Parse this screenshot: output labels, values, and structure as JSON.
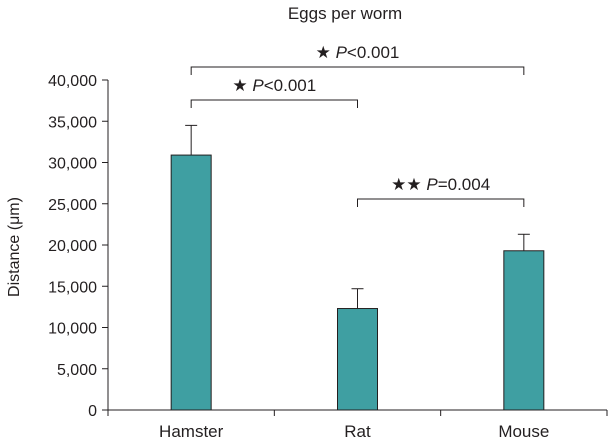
{
  "chart_data": {
    "type": "bar",
    "title": "Eggs per worm",
    "xlabel": "",
    "ylabel": "Distance (μm)",
    "categories": [
      "Hamster",
      "Rat",
      "Mouse"
    ],
    "values": [
      30900,
      12300,
      19300
    ],
    "error_bars": [
      3600,
      2400,
      2000
    ],
    "ylim": [
      0,
      40000
    ],
    "yticks": [
      0,
      5000,
      10000,
      15000,
      20000,
      25000,
      30000,
      35000,
      40000
    ],
    "ytick_labels": [
      "0",
      "5,000",
      "10,000",
      "15,000",
      "20,000",
      "25,000",
      "30,000",
      "35,000",
      "40,000"
    ],
    "bar_color": "#3f9fa2",
    "grid": false,
    "annotations": [
      {
        "from": "Hamster",
        "to": "Mouse",
        "stars": "★",
        "p_label": "P",
        "p_text": "<0.001"
      },
      {
        "from": "Hamster",
        "to": "Rat",
        "stars": "★",
        "p_label": "P",
        "p_text": "<0.001"
      },
      {
        "from": "Rat",
        "to": "Mouse",
        "stars": "★★",
        "p_label": "P",
        "p_text": "=0.004"
      }
    ]
  }
}
